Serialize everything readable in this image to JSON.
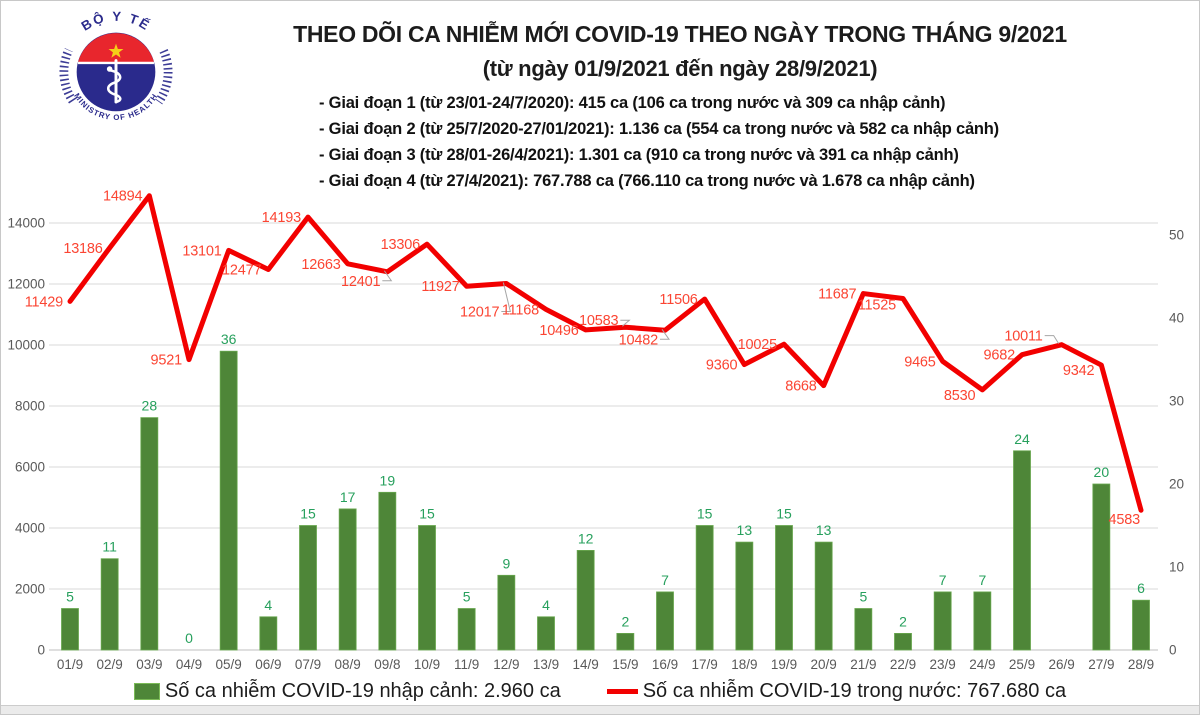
{
  "header": {
    "title": "THEO DÕI CA NHIỄM MỚI COVID-19 THEO NGÀY TRONG THÁNG 9/2021",
    "subtitle": "(từ ngày 01/9/2021 đến ngày 28/9/2021)",
    "phases": [
      "- Giai đoạn 1 (từ 23/01-24/7/2020): 415 ca (106 ca trong nước và 309 ca nhập cảnh)",
      "- Giai đoạn 2 (từ 25/7/2020-27/01/2021): 1.136 ca (554 ca trong nước và 582 ca nhập cảnh)",
      "- Giai đoạn 3 (từ 28/01-26/4/2021): 1.301 ca (910 ca trong nước và 391 ca nhập cảnh)",
      "- Giai đoạn 4 (từ 27/4/2021): 767.788 ca (766.110 ca trong nước và 1.678 ca nhập cảnh)"
    ]
  },
  "logo": {
    "top_text": "BỘ Y TẾ",
    "bottom_text": "MINISTRY OF HEALTH"
  },
  "legend": {
    "imported_label": "Số ca nhiễm COVID-19 nhập cảnh: 2.960 ca",
    "domestic_label": "Số ca nhiễm COVID-19 trong nước: 767.680 ca"
  },
  "colors": {
    "bar": "#4E8638",
    "bar_border": "#69A84F",
    "bar_label": "#27A05D",
    "line": "#F20000",
    "line_label": "#FB4533",
    "axis_text": "#595959",
    "gridline": "#D9D9D9",
    "axis_line": "#BFBFBF",
    "leader": "#A6A6A6"
  },
  "chart_data": {
    "type": "bar",
    "subtype": "bar+line combo, dual axis",
    "categories": [
      "01/9",
      "02/9",
      "03/9",
      "04/9",
      "05/9",
      "06/9",
      "07/9",
      "08/9",
      "09/8",
      "10/9",
      "11/9",
      "12/9",
      "13/9",
      "14/9",
      "15/9",
      "16/9",
      "17/9",
      "18/9",
      "19/9",
      "20/9",
      "21/9",
      "22/9",
      "23/9",
      "24/9",
      "25/9",
      "26/9",
      "27/9",
      "28/9"
    ],
    "series": [
      {
        "name": "Số ca nhiễm COVID-19 nhập cảnh",
        "type": "bar",
        "axis": "right",
        "values": [
          5,
          11,
          28,
          0,
          36,
          4,
          15,
          17,
          19,
          15,
          5,
          9,
          4,
          12,
          2,
          7,
          15,
          13,
          15,
          13,
          5,
          2,
          7,
          7,
          24,
          null,
          20,
          6
        ]
      },
      {
        "name": "Số ca nhiễm COVID-19 trong nước",
        "type": "line",
        "axis": "left",
        "values": [
          11429,
          13186,
          14894,
          9521,
          13101,
          12477,
          14193,
          12663,
          12401,
          13306,
          11927,
          12017,
          11168,
          10496,
          10583,
          10482,
          11506,
          9360,
          10025,
          8668,
          11687,
          11525,
          9465,
          8530,
          9682,
          10011,
          9342,
          4583
        ]
      }
    ],
    "left_axis": {
      "min": 0,
      "max": 14000,
      "step": 2000
    },
    "right_axis": {
      "min": 0,
      "max": 50,
      "step": 10
    },
    "grid": "horizontal",
    "legend_position": "bottom"
  }
}
